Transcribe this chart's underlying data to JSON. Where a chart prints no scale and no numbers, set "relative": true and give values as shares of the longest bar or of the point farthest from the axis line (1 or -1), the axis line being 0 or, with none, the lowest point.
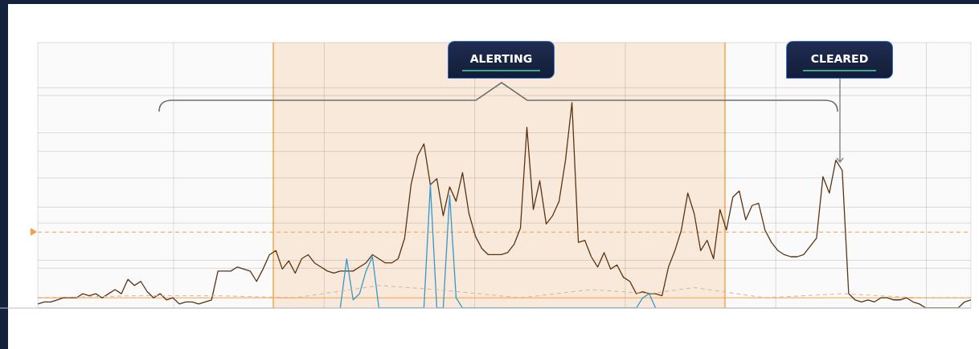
{
  "chart_data": {
    "type": "line",
    "relative": true,
    "grid": true,
    "legend": false,
    "categories": [
      null,
      null,
      null,
      null,
      null,
      null,
      null,
      null,
      null,
      null,
      null,
      null,
      null,
      null,
      null,
      null,
      null,
      null,
      null,
      null,
      null,
      null,
      null,
      null,
      null,
      null,
      null,
      null,
      null,
      null,
      null,
      null,
      null,
      null,
      null,
      null,
      null,
      null,
      null,
      null,
      null,
      null,
      null,
      null,
      null,
      null,
      null,
      null,
      null,
      null,
      null,
      null,
      null,
      null,
      null,
      null,
      null,
      null,
      null,
      null,
      null,
      null,
      null,
      null,
      null,
      null,
      null,
      null,
      null,
      null,
      null,
      null,
      null,
      null,
      null,
      null,
      null,
      null,
      null,
      null,
      null,
      null,
      null,
      null,
      null,
      null,
      null,
      null,
      null,
      null,
      null,
      null,
      null,
      null,
      null,
      null,
      null,
      null,
      null,
      null,
      null,
      null,
      null,
      null,
      null,
      null,
      null,
      null,
      null,
      null,
      null,
      null,
      null,
      null,
      null,
      null,
      null,
      null,
      null,
      null,
      null,
      null,
      null,
      null,
      null,
      null,
      null,
      null,
      null,
      null,
      null,
      null,
      null,
      null,
      null,
      null,
      null,
      null,
      null,
      null,
      null,
      null,
      null,
      null,
      null,
      null
    ],
    "series": [
      {
        "color": "#d9b48f",
        "line_style": "dashed",
        "values": [
          0.05,
          null,
          null,
          null,
          null,
          null,
          null,
          null,
          null,
          null,
          null,
          null,
          null,
          null,
          null,
          0.06,
          null,
          null,
          null,
          null,
          null,
          null,
          null,
          null,
          null,
          null,
          null,
          null,
          0.06,
          null,
          null,
          null,
          null,
          null,
          null,
          null,
          null,
          null,
          null,
          null,
          0.05,
          null,
          null,
          null,
          null,
          null,
          null,
          null,
          null,
          null,
          null,
          null,
          null,
          0.11,
          null,
          null,
          null,
          null,
          null,
          null,
          null,
          null,
          0.09,
          null,
          null,
          null,
          null,
          null,
          null,
          null,
          null,
          null,
          null,
          null,
          null,
          0.05,
          null,
          null,
          null,
          null,
          null,
          null,
          null,
          null,
          null,
          null,
          0.09,
          null,
          null,
          null,
          null,
          null,
          null,
          null,
          null,
          0.07,
          null,
          null,
          null,
          null,
          null,
          null,
          0.1,
          null,
          null,
          null,
          null,
          null,
          null,
          null,
          null,
          null,
          null,
          0.05,
          null,
          null,
          null,
          null,
          null,
          null,
          null,
          null,
          null,
          null,
          null,
          0.07,
          null,
          null,
          null,
          null,
          null,
          null,
          null,
          null,
          null,
          null,
          null,
          0.05,
          null,
          null,
          null,
          null,
          null,
          null,
          null,
          0.05
        ]
      },
      {
        "color": "#3399cc",
        "line_style": "solid",
        "values": [
          null,
          null,
          null,
          null,
          null,
          null,
          null,
          null,
          null,
          null,
          null,
          null,
          null,
          null,
          null,
          null,
          null,
          null,
          null,
          null,
          null,
          null,
          null,
          null,
          null,
          null,
          null,
          null,
          null,
          null,
          null,
          null,
          null,
          null,
          null,
          null,
          null,
          null,
          null,
          null,
          null,
          null,
          null,
          null,
          null,
          null,
          null,
          0,
          0.24,
          0.04,
          0.07,
          0.18,
          0.25,
          0,
          null,
          null,
          null,
          null,
          null,
          null,
          0,
          0.6,
          0,
          0,
          0.55,
          0.05,
          0,
          null,
          null,
          null,
          null,
          null,
          null,
          null,
          null,
          null,
          null,
          null,
          null,
          null,
          null,
          null,
          null,
          null,
          null,
          null,
          null,
          null,
          null,
          null,
          null,
          null,
          null,
          0,
          0.05,
          0.07,
          0,
          null,
          null,
          null,
          null,
          null,
          null,
          null,
          null,
          null,
          null,
          null,
          null,
          null,
          null,
          null,
          null,
          null,
          null,
          null,
          null,
          null,
          null,
          null,
          null,
          null,
          null,
          null,
          null,
          null,
          null,
          null,
          null,
          null,
          null,
          null,
          null,
          null,
          null,
          null,
          null,
          null,
          null,
          null,
          null,
          null,
          null,
          null,
          null,
          null
        ]
      },
      {
        "color": "#5a3412",
        "line_style": "solid",
        "values": [
          0.02,
          0.03,
          0.03,
          0.04,
          0.05,
          0.05,
          0.05,
          0.07,
          0.06,
          0.07,
          0.05,
          0.07,
          0.09,
          0.07,
          0.14,
          0.11,
          0.13,
          0.08,
          0.05,
          0.07,
          0.04,
          0.05,
          0.02,
          0.03,
          0.03,
          0.02,
          0.03,
          0.04,
          0.18,
          0.18,
          0.18,
          0.2,
          0.19,
          0.18,
          0.13,
          0.19,
          0.26,
          0.28,
          0.19,
          0.23,
          0.17,
          0.24,
          0.26,
          0.22,
          0.2,
          0.18,
          0.17,
          0.18,
          0.18,
          0.18,
          0.2,
          0.22,
          0.26,
          0.24,
          0.22,
          0.22,
          0.24,
          0.34,
          0.6,
          0.74,
          0.8,
          0.6,
          0.63,
          0.45,
          0.59,
          0.52,
          0.66,
          0.46,
          0.35,
          0.29,
          0.26,
          0.26,
          0.26,
          0.27,
          0.31,
          0.39,
          0.88,
          0.48,
          0.62,
          0.41,
          0.45,
          0.52,
          0.72,
          1,
          0.32,
          0.33,
          0.25,
          0.2,
          0.27,
          0.19,
          0.21,
          0.15,
          0.13,
          0.07,
          0.08,
          0.07,
          0.07,
          0.06,
          0.2,
          0.28,
          0.38,
          0.56,
          0.46,
          0.28,
          0.33,
          0.24,
          0.48,
          0.38,
          0.54,
          0.57,
          0.43,
          0.5,
          0.51,
          0.38,
          0.32,
          0.28,
          0.26,
          0.25,
          0.25,
          0.26,
          0.3,
          0.34,
          0.64,
          0.56,
          0.72,
          0.67,
          0.07,
          0.04,
          0.03,
          0.04,
          0.03,
          0.05,
          0.05,
          0.04,
          0.04,
          0.05,
          0.03,
          0.02,
          0,
          0,
          0,
          0,
          0,
          0,
          0.03,
          0.04
        ]
      }
    ],
    "ref_lines": [
      {
        "axis": "y",
        "value": 0.37,
        "color": "#f0a050",
        "line_style": "dashed"
      },
      {
        "axis": "y",
        "value": 0.05,
        "color": "#f0a050",
        "line_style": "solid"
      }
    ],
    "annotations": [
      "ALERTING",
      "CLEARED"
    ]
  }
}
